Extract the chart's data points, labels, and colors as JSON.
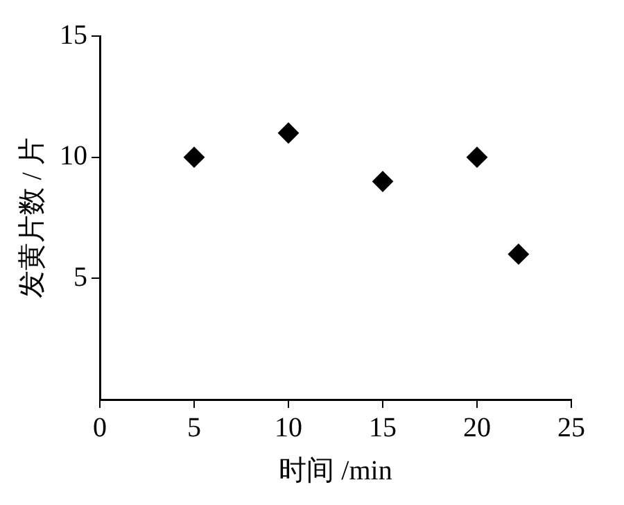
{
  "chart_data": {
    "type": "scatter",
    "xlabel": "时间 /min",
    "ylabel": "发黄片数 / 片",
    "x": [
      5,
      10,
      15,
      20,
      22.2
    ],
    "values": [
      10,
      11,
      9,
      10,
      6
    ],
    "color": "#000000",
    "marker": "diamond",
    "xlim": [
      0,
      25
    ],
    "xticks": [
      0,
      5,
      10,
      15,
      20,
      25
    ],
    "ylim": [
      0,
      15
    ],
    "yticks": [
      5,
      10,
      15
    ],
    "grid": false,
    "legend": false
  }
}
